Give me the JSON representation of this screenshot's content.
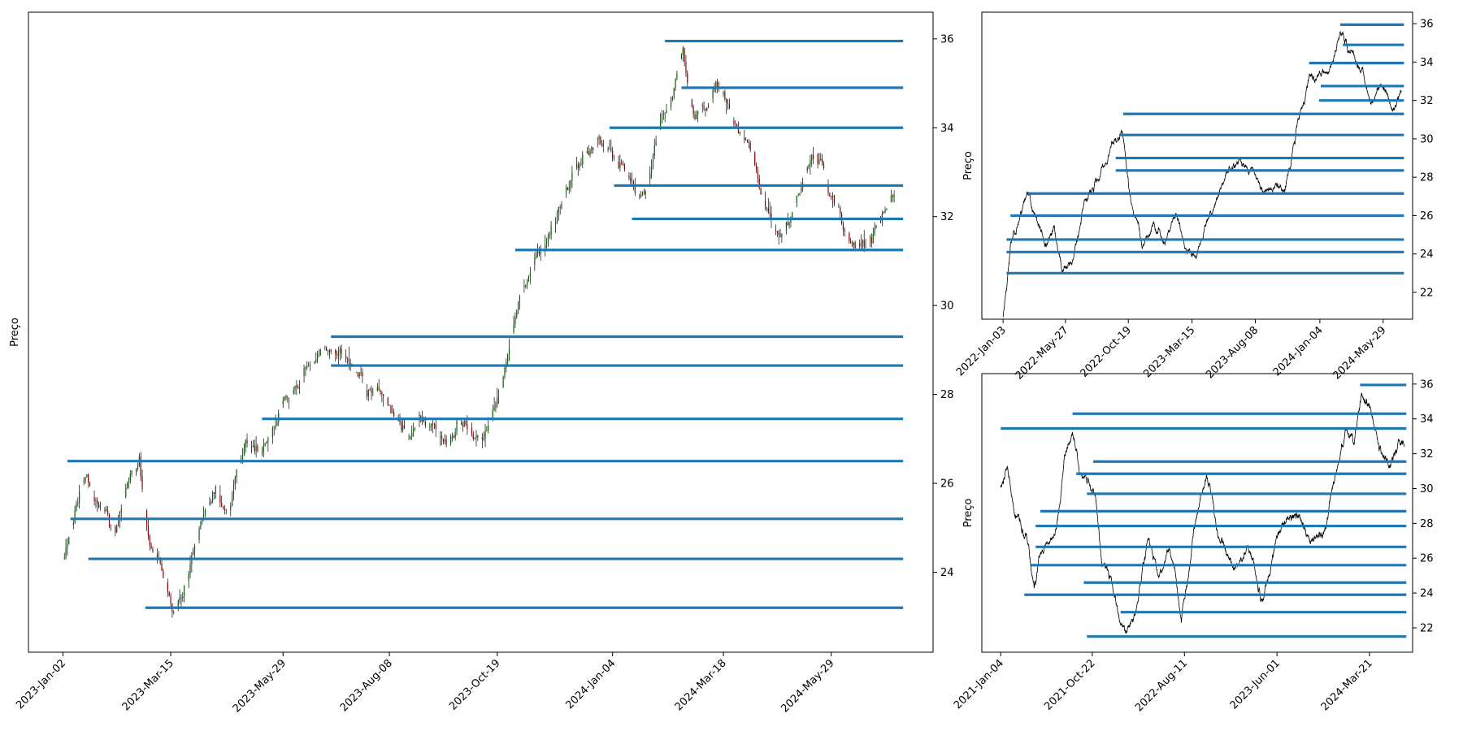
{
  "colors": {
    "level_line": "#1f77b4",
    "price_line": "#000000",
    "candle_up": "#006400",
    "candle_down": "#8b0000",
    "axes_frame": "#000000"
  },
  "chart_data": [
    {
      "id": "main",
      "type": "candlestick",
      "ylabel": "Preço",
      "ylim": [
        22.2,
        36.6
      ],
      "yticks": [
        24,
        26,
        28,
        30,
        32,
        34,
        36
      ],
      "xtick_labels": [
        "2023-Jan-02",
        "2023-Mar-15",
        "2023-May-29",
        "2023-Aug-08",
        "2023-Oct-19",
        "2024-Jan-04",
        "2024-Mar-18",
        "2024-May-29"
      ],
      "price_path": [
        [
          "2023-01-02",
          24.3
        ],
        [
          "2023-01-10",
          25.4
        ],
        [
          "2023-01-18",
          26.2
        ],
        [
          "2023-01-27",
          25.5
        ],
        [
          "2023-02-06",
          24.9
        ],
        [
          "2023-02-14",
          26.0
        ],
        [
          "2023-02-22",
          26.6
        ],
        [
          "2023-03-01",
          24.6
        ],
        [
          "2023-03-08",
          24.2
        ],
        [
          "2023-03-17",
          23.1
        ],
        [
          "2023-03-24",
          23.7
        ],
        [
          "2023-03-31",
          24.6
        ],
        [
          "2023-04-12",
          25.8
        ],
        [
          "2023-04-20",
          25.4
        ],
        [
          "2023-04-28",
          26.3
        ],
        [
          "2023-05-05",
          26.9
        ],
        [
          "2023-05-15",
          26.7
        ],
        [
          "2023-05-24",
          27.3
        ],
        [
          "2023-06-02",
          27.9
        ],
        [
          "2023-06-12",
          28.6
        ],
        [
          "2023-06-21",
          28.9
        ],
        [
          "2023-06-30",
          29.0
        ],
        [
          "2023-07-10",
          28.8
        ],
        [
          "2023-07-20",
          28.5
        ],
        [
          "2023-08-01",
          28.1
        ],
        [
          "2023-08-10",
          27.6
        ],
        [
          "2023-08-21",
          27.0
        ],
        [
          "2023-09-01",
          27.3
        ],
        [
          "2023-09-12",
          27.0
        ],
        [
          "2023-09-22",
          27.4
        ],
        [
          "2023-10-03",
          27.0
        ],
        [
          "2023-10-13",
          27.3
        ],
        [
          "2023-10-24",
          28.6
        ],
        [
          "2023-11-03",
          30.2
        ],
        [
          "2023-11-14",
          31.2
        ],
        [
          "2023-11-24",
          31.8
        ],
        [
          "2023-12-05",
          32.6
        ],
        [
          "2023-12-15",
          33.4
        ],
        [
          "2023-12-26",
          33.8
        ],
        [
          "2024-01-05",
          33.3
        ],
        [
          "2024-01-16",
          32.8
        ],
        [
          "2024-01-26",
          32.5
        ],
        [
          "2024-02-06",
          34.3
        ],
        [
          "2024-02-14",
          34.9
        ],
        [
          "2024-02-20",
          35.8
        ],
        [
          "2024-02-28",
          34.2
        ],
        [
          "2024-03-08",
          34.5
        ],
        [
          "2024-03-18",
          34.8
        ],
        [
          "2024-03-27",
          34.0
        ],
        [
          "2024-04-05",
          33.5
        ],
        [
          "2024-04-15",
          32.2
        ],
        [
          "2024-04-24",
          31.6
        ],
        [
          "2024-05-03",
          32.1
        ],
        [
          "2024-05-13",
          33.1
        ],
        [
          "2024-05-22",
          33.3
        ],
        [
          "2024-05-31",
          32.3
        ],
        [
          "2024-06-11",
          31.4
        ],
        [
          "2024-06-21",
          31.3
        ],
        [
          "2024-07-01",
          31.9
        ],
        [
          "2024-07-10",
          32.5
        ]
      ],
      "levels": [
        {
          "start": "2023-02-26",
          "value": 23.2
        },
        {
          "start": "2023-01-19",
          "value": 24.3
        },
        {
          "start": "2023-01-07",
          "value": 25.2
        },
        {
          "start": "2023-01-05",
          "value": 26.5
        },
        {
          "start": "2023-05-15",
          "value": 27.45
        },
        {
          "start": "2023-06-30",
          "value": 28.65
        },
        {
          "start": "2023-06-30",
          "value": 29.3
        },
        {
          "start": "2023-10-31",
          "value": 31.25
        },
        {
          "start": "2024-01-17",
          "value": 31.95
        },
        {
          "start": "2024-01-05",
          "value": 32.7
        },
        {
          "start": "2024-01-02",
          "value": 34.0
        },
        {
          "start": "2024-02-19",
          "value": 34.9
        },
        {
          "start": "2024-02-08",
          "value": 35.95
        }
      ],
      "level_end": "2024-07-16"
    },
    {
      "id": "top-right",
      "type": "line",
      "ylabel": "Preço",
      "ylim": [
        20.6,
        36.6
      ],
      "yticks": [
        22,
        24,
        26,
        28,
        30,
        32,
        34,
        36
      ],
      "xtick_labels": [
        "2022-Jan-03",
        "2022-May-27",
        "2022-Oct-19",
        "2023-Mar-15",
        "2023-Aug-08",
        "2024-Jan-04",
        "2024-May-29"
      ],
      "price_path": [
        [
          "2022-01-03",
          20.7
        ],
        [
          "2022-01-20",
          24.5
        ],
        [
          "2022-02-10",
          25.8
        ],
        [
          "2022-03-01",
          27.2
        ],
        [
          "2022-03-20",
          26.0
        ],
        [
          "2022-04-10",
          24.4
        ],
        [
          "2022-05-01",
          25.5
        ],
        [
          "2022-05-20",
          23.0
        ],
        [
          "2022-06-15",
          23.8
        ],
        [
          "2022-07-10",
          26.8
        ],
        [
          "2022-08-01",
          27.5
        ],
        [
          "2022-08-25",
          28.6
        ],
        [
          "2022-09-15",
          29.7
        ],
        [
          "2022-10-05",
          30.4
        ],
        [
          "2022-10-25",
          26.7
        ],
        [
          "2022-11-20",
          24.3
        ],
        [
          "2022-12-15",
          25.6
        ],
        [
          "2023-01-10",
          24.6
        ],
        [
          "2023-02-05",
          26.1
        ],
        [
          "2023-03-01",
          24.3
        ],
        [
          "2023-03-25",
          23.8
        ],
        [
          "2023-04-20",
          25.8
        ],
        [
          "2023-05-15",
          27.0
        ],
        [
          "2023-06-10",
          28.5
        ],
        [
          "2023-07-05",
          29.0
        ],
        [
          "2023-08-01",
          28.5
        ],
        [
          "2023-08-25",
          27.3
        ],
        [
          "2023-09-20",
          27.4
        ],
        [
          "2023-10-15",
          27.2
        ],
        [
          "2023-11-10",
          30.5
        ],
        [
          "2023-12-10",
          33.2
        ],
        [
          "2024-01-05",
          33.4
        ],
        [
          "2024-02-01",
          33.9
        ],
        [
          "2024-02-20",
          35.6
        ],
        [
          "2024-03-10",
          34.5
        ],
        [
          "2024-04-05",
          33.6
        ],
        [
          "2024-04-30",
          31.8
        ],
        [
          "2024-05-25",
          32.8
        ],
        [
          "2024-06-20",
          31.5
        ],
        [
          "2024-07-10",
          32.5
        ]
      ],
      "levels": [
        {
          "start": "2022-01-11",
          "value": 23.0
        },
        {
          "start": "2022-01-11",
          "value": 24.1
        },
        {
          "start": "2022-01-11",
          "value": 24.75
        },
        {
          "start": "2022-01-20",
          "value": 26.0
        },
        {
          "start": "2022-03-01",
          "value": 27.15
        },
        {
          "start": "2022-09-20",
          "value": 28.35
        },
        {
          "start": "2022-09-20",
          "value": 29.0
        },
        {
          "start": "2022-09-28",
          "value": 30.2
        },
        {
          "start": "2022-10-07",
          "value": 31.3
        },
        {
          "start": "2024-01-02",
          "value": 32.0
        },
        {
          "start": "2024-01-06",
          "value": 32.75
        },
        {
          "start": "2023-12-10",
          "value": 33.95
        },
        {
          "start": "2024-02-26",
          "value": 34.9
        },
        {
          "start": "2024-02-20",
          "value": 35.95
        }
      ],
      "level_end": "2024-07-16"
    },
    {
      "id": "bottom-right",
      "type": "line",
      "ylabel": "Preço",
      "ylim": [
        20.6,
        36.6
      ],
      "yticks": [
        22,
        24,
        26,
        28,
        30,
        32,
        34,
        36
      ],
      "xtick_labels": [
        "2021-Jan-04",
        "2021-Oct-22",
        "2022-Aug-11",
        "2023-Jun-01",
        "2024-Mar-21"
      ],
      "price_path": [
        [
          "2021-01-04",
          30.2
        ],
        [
          "2021-01-25",
          31.3
        ],
        [
          "2021-02-20",
          28.3
        ],
        [
          "2021-03-25",
          27.3
        ],
        [
          "2021-04-20",
          24.3
        ],
        [
          "2021-05-20",
          26.3
        ],
        [
          "2021-06-25",
          27.3
        ],
        [
          "2021-07-25",
          31.8
        ],
        [
          "2021-08-20",
          33.2
        ],
        [
          "2021-09-10",
          31.0
        ],
        [
          "2021-10-10",
          30.5
        ],
        [
          "2021-11-01",
          29.6
        ],
        [
          "2021-11-22",
          25.5
        ],
        [
          "2021-12-25",
          24.5
        ],
        [
          "2022-02-01",
          22.0
        ],
        [
          "2022-03-10",
          23.0
        ],
        [
          "2022-04-15",
          27.0
        ],
        [
          "2022-05-20",
          25.0
        ],
        [
          "2022-06-25",
          26.5
        ],
        [
          "2022-08-01",
          22.3
        ],
        [
          "2022-09-10",
          27.7
        ],
        [
          "2022-10-20",
          30.8
        ],
        [
          "2022-12-01",
          27.0
        ],
        [
          "2023-01-15",
          25.3
        ],
        [
          "2023-03-01",
          26.7
        ],
        [
          "2023-04-10",
          23.5
        ],
        [
          "2023-05-20",
          26.2
        ],
        [
          "2023-07-01",
          28.3
        ],
        [
          "2023-08-10",
          28.5
        ],
        [
          "2023-09-20",
          27.0
        ],
        [
          "2023-10-25",
          27.3
        ],
        [
          "2023-12-01",
          30.5
        ],
        [
          "2024-01-05",
          33.5
        ],
        [
          "2024-02-01",
          32.5
        ],
        [
          "2024-02-25",
          35.5
        ],
        [
          "2024-03-20",
          34.8
        ],
        [
          "2024-04-20",
          32.3
        ],
        [
          "2024-05-25",
          31.3
        ],
        [
          "2024-06-25",
          32.7
        ],
        [
          "2024-07-10",
          32.4
        ]
      ],
      "levels": [
        {
          "start": "2021-10-05",
          "value": 21.5
        },
        {
          "start": "2022-01-20",
          "value": 22.9
        },
        {
          "start": "2021-03-20",
          "value": 23.9
        },
        {
          "start": "2021-09-25",
          "value": 24.6
        },
        {
          "start": "2021-04-10",
          "value": 25.6
        },
        {
          "start": "2021-04-25",
          "value": 26.65
        },
        {
          "start": "2021-04-25",
          "value": 27.85
        },
        {
          "start": "2021-05-10",
          "value": 28.7
        },
        {
          "start": "2021-10-05",
          "value": 29.7
        },
        {
          "start": "2021-09-01",
          "value": 30.85
        },
        {
          "start": "2021-10-25",
          "value": 31.55
        },
        {
          "start": "2021-01-04",
          "value": 33.45
        },
        {
          "start": "2021-08-20",
          "value": 34.3
        },
        {
          "start": "2024-02-20",
          "value": 35.95
        }
      ],
      "level_end": "2024-07-16"
    }
  ]
}
